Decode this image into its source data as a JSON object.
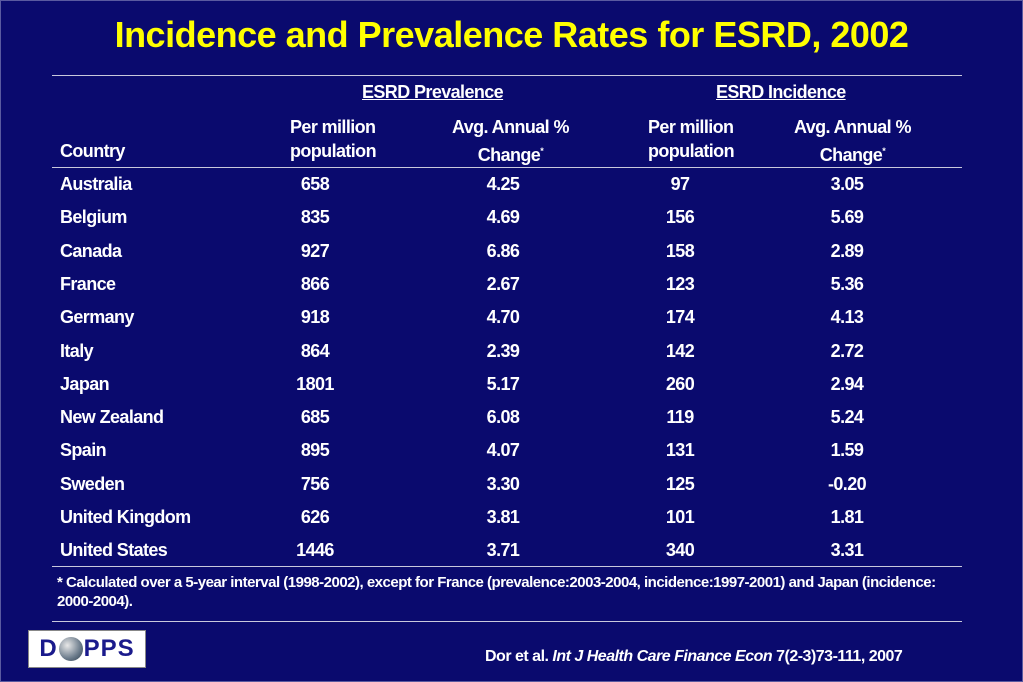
{
  "title": "Incidence and Prevalence Rates for ESRD, 2002",
  "table": {
    "group_headers": [
      "ESRD Prevalence",
      "ESRD Incidence"
    ],
    "columns": {
      "country": "Country",
      "per_million_line1": "Per million",
      "per_million_line2": "population",
      "change_line1": "Avg. Annual %",
      "change_line2": "Change",
      "asterisk": "*"
    },
    "rows": [
      {
        "country": "Australia",
        "prev": "658",
        "prev_change": "4.25",
        "inc": "97",
        "inc_change": "3.05"
      },
      {
        "country": "Belgium",
        "prev": "835",
        "prev_change": "4.69",
        "inc": "156",
        "inc_change": "5.69"
      },
      {
        "country": "Canada",
        "prev": "927",
        "prev_change": "6.86",
        "inc": "158",
        "inc_change": "2.89"
      },
      {
        "country": "France",
        "prev": "866",
        "prev_change": "2.67",
        "inc": "123",
        "inc_change": "5.36"
      },
      {
        "country": "Germany",
        "prev": "918",
        "prev_change": "4.70",
        "inc": "174",
        "inc_change": "4.13"
      },
      {
        "country": "Italy",
        "prev": "864",
        "prev_change": "2.39",
        "inc": "142",
        "inc_change": "2.72"
      },
      {
        "country": "Japan",
        "prev": "1801",
        "prev_change": "5.17",
        "inc": "260",
        "inc_change": "2.94"
      },
      {
        "country": "New Zealand",
        "prev": "685",
        "prev_change": "6.08",
        "inc": "119",
        "inc_change": "5.24"
      },
      {
        "country": "Spain",
        "prev": "895",
        "prev_change": "4.07",
        "inc": "131",
        "inc_change": "1.59"
      },
      {
        "country": "Sweden",
        "prev": "756",
        "prev_change": "3.30",
        "inc": "125",
        "inc_change": "-0.20"
      },
      {
        "country": "United Kingdom",
        "prev": "626",
        "prev_change": "3.81",
        "inc": "101",
        "inc_change": "1.81"
      },
      {
        "country": "United States",
        "prev": "1446",
        "prev_change": "3.71",
        "inc": "340",
        "inc_change": "3.31"
      }
    ]
  },
  "footnote": "* Calculated over a 5-year interval (1998-2002), except for France (prevalence:2003-2004, incidence:1997-2001) and Japan (incidence: 2000-2004).",
  "citation": {
    "authors": "Dor et al. ",
    "journal": "Int J Health Care Finance Econ",
    "ref": " 7(2-3)73-111, 2007"
  },
  "logo": {
    "left": "D",
    "right": "PPS"
  },
  "colors": {
    "background": "#0a0a6e",
    "title": "#ffff00",
    "text": "#ffffff"
  }
}
